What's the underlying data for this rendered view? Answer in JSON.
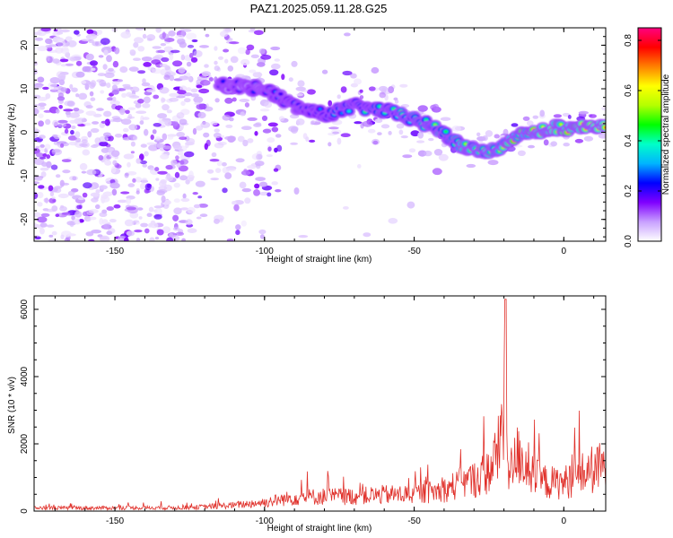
{
  "title": "PAZ1.2025.059.11.28.G25",
  "colors": {
    "snr_line": "#e0302a",
    "axis": "#000000"
  },
  "chart_data": [
    {
      "type": "heatmap",
      "xlabel": "Height of straight line (km)",
      "ylabel": "Frequency (Hz)",
      "xlim": [
        -177,
        14
      ],
      "ylim": [
        -25,
        24
      ],
      "x_ticks": [
        -150,
        -100,
        -50,
        0
      ],
      "x_tick_labels": [
        "-150",
        "-100",
        "-50",
        "0"
      ],
      "y_ticks": [
        -20,
        -10,
        0,
        10,
        20
      ],
      "y_tick_labels": [
        "-20",
        "-10",
        "0",
        "10",
        "20"
      ],
      "colorbar": {
        "label": "Normalized spectral amplitude",
        "range": [
          0,
          0.85
        ],
        "ticks": [
          0.0,
          0.2,
          0.4,
          0.6,
          0.8
        ],
        "tick_labels": [
          "0.0",
          "0.2",
          "0.4",
          "0.6",
          "0.8"
        ],
        "colormap": [
          "#ffffff",
          "#c8a0ff",
          "#8000ff",
          "#0000ff",
          "#00b4ff",
          "#00ffc8",
          "#00ff00",
          "#b4ff00",
          "#ffff00",
          "#ff8000",
          "#ff0000",
          "#ff0080"
        ]
      },
      "ridge": {
        "x": [
          -115,
          -100,
          -90,
          -80,
          -70,
          -60,
          -50,
          -40,
          -35,
          -30,
          -25,
          -20,
          -15,
          -10,
          -5,
          0,
          5,
          10,
          14
        ],
        "y": [
          11,
          10,
          6,
          4,
          6,
          5,
          3,
          0,
          -3,
          -4,
          -4,
          -3,
          -1,
          0,
          1,
          1,
          1,
          1,
          2
        ]
      }
    },
    {
      "type": "line",
      "xlabel": "Height of straight line (km)",
      "ylabel": "SNR (10 * v/v)",
      "xlim": [
        -177,
        14
      ],
      "ylim": [
        0,
        6400
      ],
      "x_ticks": [
        -150,
        -100,
        -50,
        0
      ],
      "x_tick_labels": [
        "-150",
        "-100",
        "-50",
        "0"
      ],
      "y_ticks": [
        0,
        2000,
        4000,
        6000
      ],
      "y_tick_labels": [
        "0",
        "2000",
        "4000",
        "6000"
      ],
      "envelope": {
        "x": [
          -177,
          -150,
          -125,
          -110,
          -100,
          -90,
          -80,
          -70,
          -60,
          -50,
          -45,
          -40,
          -35,
          -30,
          -25,
          -22,
          -20,
          -18,
          -15,
          -12,
          -10,
          -5,
          0,
          5,
          10,
          14
        ],
        "y": [
          150,
          150,
          170,
          280,
          420,
          650,
          700,
          700,
          780,
          800,
          900,
          1000,
          1300,
          1500,
          1900,
          2800,
          4600,
          1800,
          2800,
          2000,
          1600,
          1350,
          1350,
          1700,
          2000,
          2100
        ]
      }
    }
  ]
}
